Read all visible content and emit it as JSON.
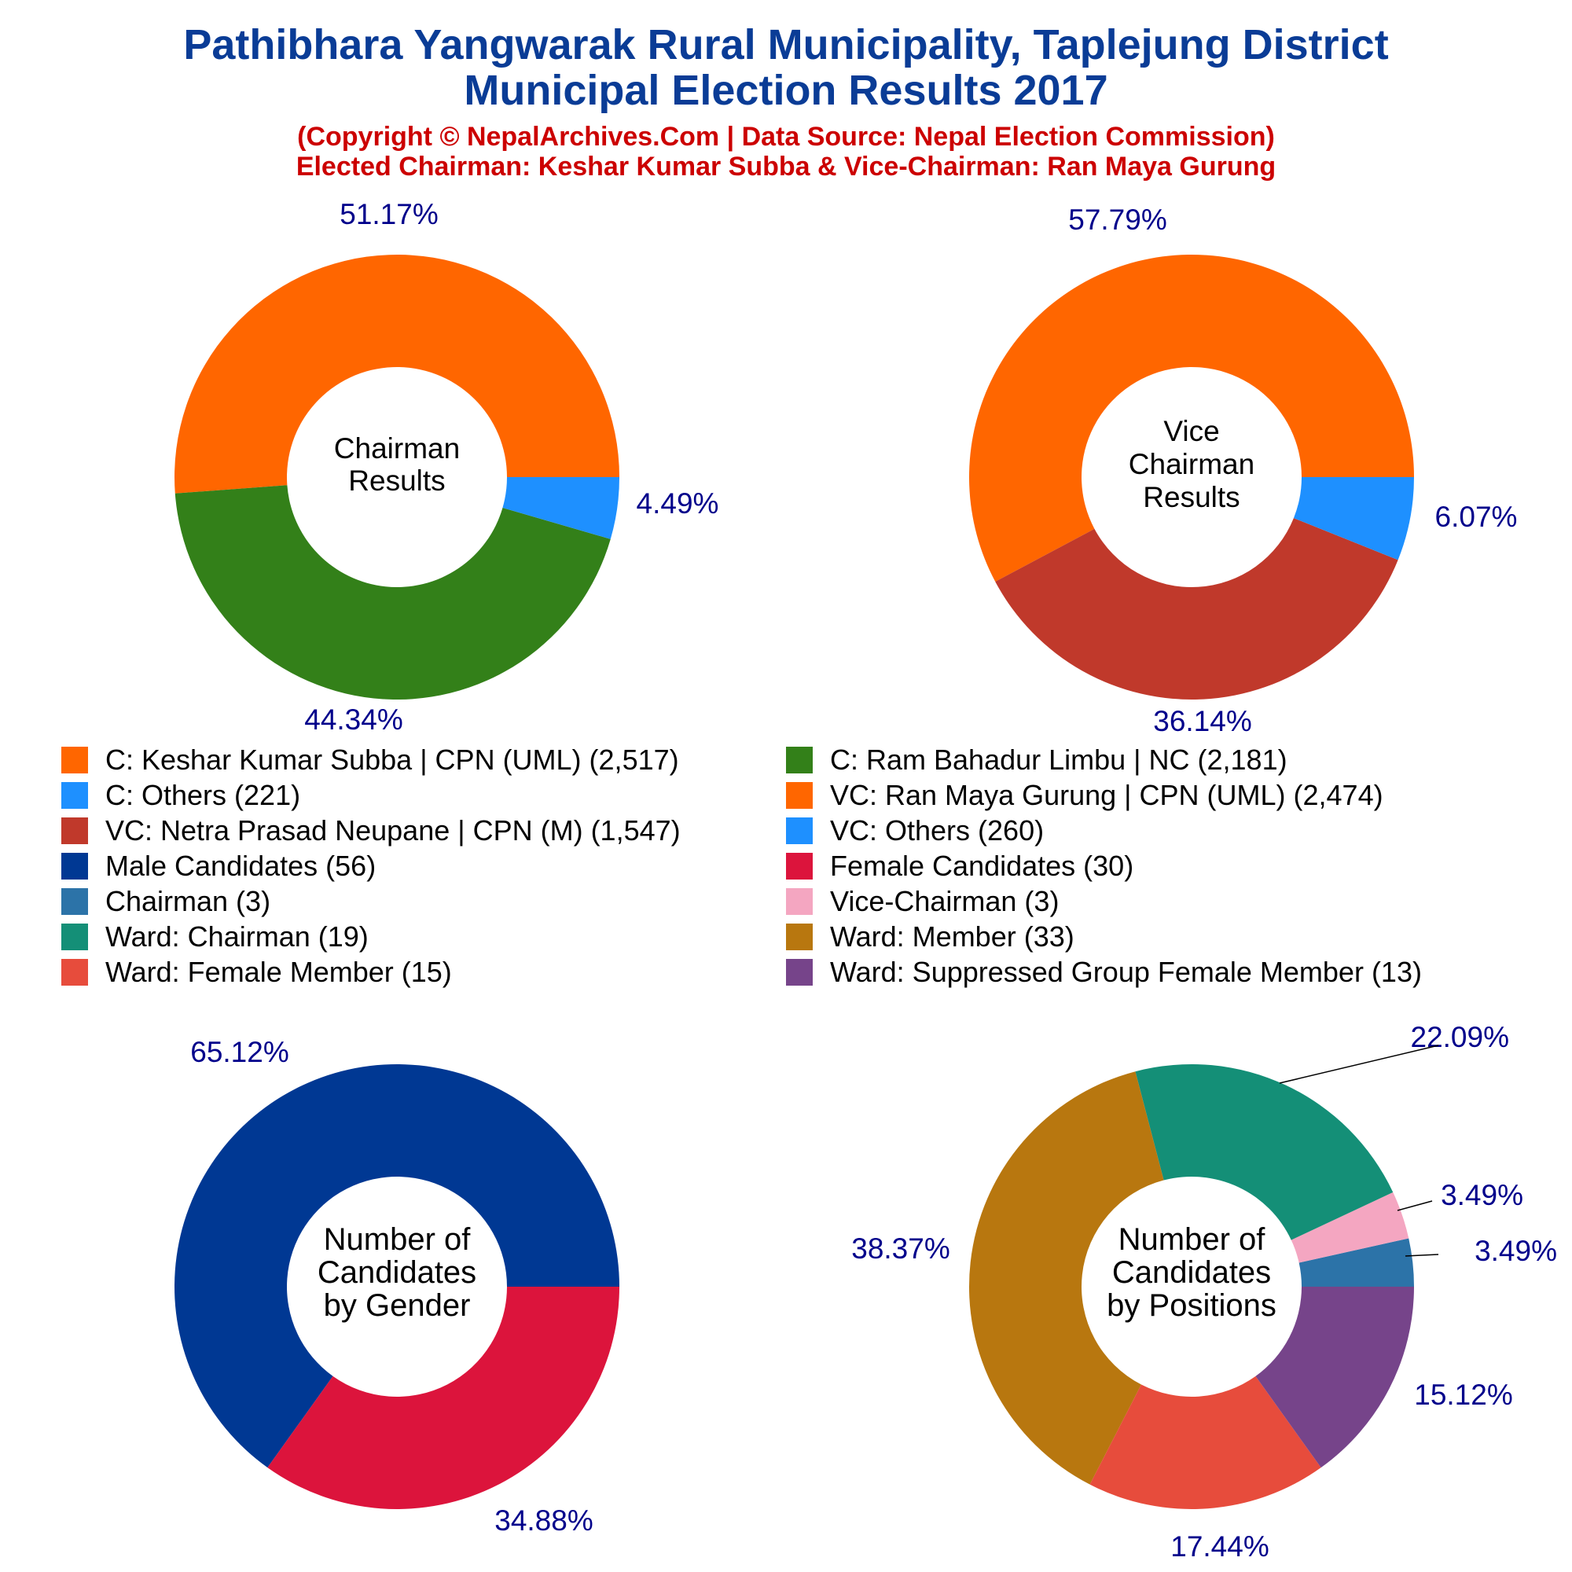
{
  "header": {
    "title_line1": "Pathibhara Yangwarak Rural Municipality, Taplejung District",
    "title_line2": "Municipal Election Results 2017",
    "subtitle_line1": "(Copyright © NepalArchives.Com | Data Source: Nepal Election Commission)",
    "subtitle_line2": "Elected Chairman: Keshar Kumar Subba & Vice-Chairman: Ran Maya Gurung"
  },
  "colors": {
    "title": "#0a3c96",
    "subtitle": "#cc0000",
    "percent_label": "#00008b"
  },
  "legend": [
    {
      "label": "C: Keshar Kumar Subba | CPN (UML) (2,517)",
      "color": "#ff6600"
    },
    {
      "label": "C: Ram Bahadur Limbu | NC (2,181)",
      "color": "#338019"
    },
    {
      "label": "C: Others (221)",
      "color": "#1e90ff"
    },
    {
      "label": "VC: Ran Maya Gurung | CPN (UML) (2,474)",
      "color": "#ff6600"
    },
    {
      "label": "VC: Netra Prasad Neupane | CPN (M) (1,547)",
      "color": "#c0392b"
    },
    {
      "label": "VC: Others (260)",
      "color": "#1e90ff"
    },
    {
      "label": "Male Candidates (56)",
      "color": "#003893"
    },
    {
      "label": "Female Candidates (30)",
      "color": "#dc143c"
    },
    {
      "label": "Chairman (3)",
      "color": "#2c73a8"
    },
    {
      "label": "Vice-Chairman (3)",
      "color": "#f4a6c1"
    },
    {
      "label": "Ward: Chairman (19)",
      "color": "#148f77"
    },
    {
      "label": "Ward: Member (33)",
      "color": "#b8770f"
    },
    {
      "label": "Ward: Female Member (15)",
      "color": "#e74c3c"
    },
    {
      "label": "Ward: Suppressed Group Female Member (13)",
      "color": "#76448a"
    }
  ],
  "chart_data": [
    {
      "type": "pie",
      "center_label": [
        "Chairman",
        "Results"
      ],
      "slices": [
        {
          "name": "C: Keshar Kumar Subba | CPN (UML)",
          "value": 2517,
          "label": "51.17%",
          "color": "#ff6600"
        },
        {
          "name": "C: Ram Bahadur Limbu | NC",
          "value": 2181,
          "label": "44.34%",
          "color": "#338019"
        },
        {
          "name": "C: Others",
          "value": 221,
          "label": "4.49%",
          "color": "#1e90ff"
        }
      ]
    },
    {
      "type": "pie",
      "center_label": [
        "Vice",
        "Chairman",
        "Results"
      ],
      "slices": [
        {
          "name": "VC: Ran Maya Gurung | CPN (UML)",
          "value": 2474,
          "label": "57.79%",
          "color": "#ff6600"
        },
        {
          "name": "VC: Netra Prasad Neupane | CPN (M)",
          "value": 1547,
          "label": "36.14%",
          "color": "#c0392b"
        },
        {
          "name": "VC: Others",
          "value": 260,
          "label": "6.07%",
          "color": "#1e90ff"
        }
      ]
    },
    {
      "type": "pie",
      "center_label": [
        "Number of",
        "Candidates",
        "by Gender"
      ],
      "slices": [
        {
          "name": "Male Candidates",
          "value": 56,
          "label": "65.12%",
          "color": "#003893"
        },
        {
          "name": "Female Candidates",
          "value": 30,
          "label": "34.88%",
          "color": "#dc143c"
        }
      ]
    },
    {
      "type": "pie",
      "center_label": [
        "Number of",
        "Candidates",
        "by Positions"
      ],
      "slices": [
        {
          "name": "Chairman",
          "value": 3,
          "label": "3.49%",
          "color": "#2c73a8"
        },
        {
          "name": "Vice-Chairman",
          "value": 3,
          "label": "3.49%",
          "color": "#f4a6c1"
        },
        {
          "name": "Ward: Chairman",
          "value": 19,
          "label": "22.09%",
          "color": "#148f77"
        },
        {
          "name": "Ward: Member",
          "value": 33,
          "label": "38.37%",
          "color": "#b8770f"
        },
        {
          "name": "Ward: Female Member",
          "value": 15,
          "label": "17.44%",
          "color": "#e74c3c"
        },
        {
          "name": "Ward: Suppressed Group Female Member",
          "value": 13,
          "label": "15.12%",
          "color": "#76448a"
        }
      ]
    }
  ]
}
